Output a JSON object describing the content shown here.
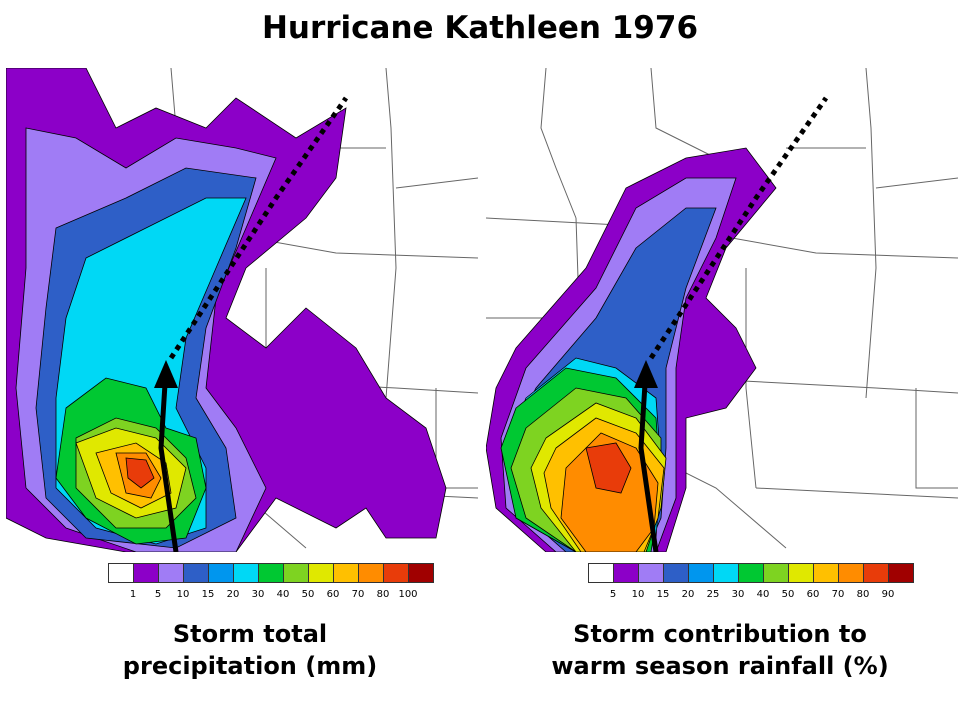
{
  "title": "Hurricane Kathleen 1976",
  "left_panel": {
    "caption_line1": "Storm total",
    "caption_line2": "precipitation (mm)",
    "legend_ticks": [
      "1",
      "5",
      "10",
      "15",
      "20",
      "30",
      "40",
      "50",
      "60",
      "70",
      "80",
      "100"
    ]
  },
  "right_panel": {
    "caption_line1": "Storm contribution to",
    "caption_line2": "warm season rainfall (%)",
    "legend_ticks": [
      "5",
      "10",
      "15",
      "20",
      "25",
      "30",
      "40",
      "50",
      "60",
      "70",
      "80",
      "90"
    ]
  },
  "colors": {
    "scale": [
      "#ffffff",
      "#8c00c8",
      "#a07cf5",
      "#2e5fc7",
      "#0096ee",
      "#00d8f5",
      "#00c832",
      "#7ed321",
      "#e0e800",
      "#ffc000",
      "#ff8c00",
      "#e83c0a",
      "#a00000"
    ]
  }
}
